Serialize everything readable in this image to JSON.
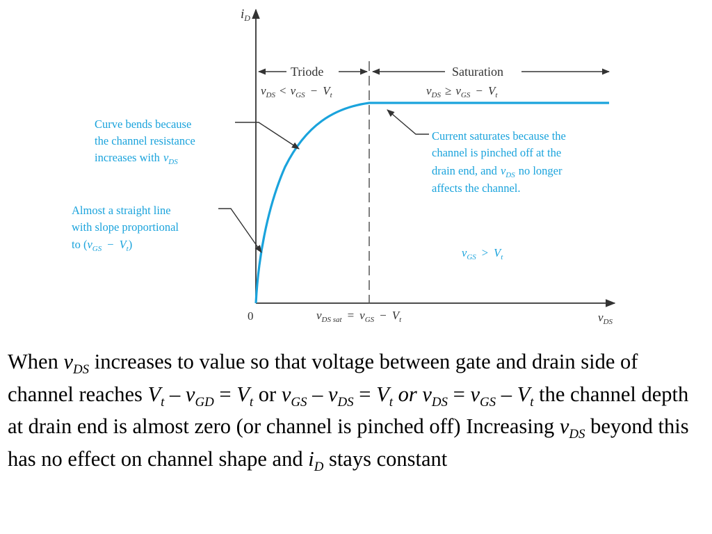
{
  "colors": {
    "curve": "#1AA3DC",
    "annotation": "#1AA3DC",
    "axis": "#333333"
  },
  "diagram": {
    "y_axis_var": "i",
    "y_axis_sub": "D",
    "x_axis_var": "v",
    "x_axis_sub": "DS",
    "origin": "0",
    "triode_label": "Triode",
    "saturation_label": "Saturation",
    "triode_condition": {
      "v1": "v",
      "s1": "DS",
      "op": "<",
      "v2": "v",
      "s2": "GS",
      "minus": "−",
      "v3": "V",
      "s3": "t"
    },
    "saturation_condition": {
      "v1": "v",
      "s1": "DS",
      "op": "≥",
      "v2": "v",
      "s2": "GS",
      "minus": "−",
      "v3": "V",
      "s3": "t"
    },
    "vds_sat": {
      "v1": "v",
      "s1": "DS sat",
      "eq": "=",
      "v2": "v",
      "s2": "GS",
      "minus": "−",
      "v3": "V",
      "s3": "t"
    },
    "condition_region": {
      "v1": "v",
      "s1": "GS",
      "op": ">",
      "v2": "V",
      "s2": "t"
    },
    "note_curve_bends": {
      "line1": "Curve bends because",
      "line2": "the channel resistance",
      "line3": "increases with",
      "var": "v",
      "sub": "DS"
    },
    "note_straight": {
      "line1": "Almost a straight line",
      "line2": "with slope proportional",
      "line3_pre": "to (",
      "v1": "v",
      "s1": "GS",
      "minus": "−",
      "v2": "V",
      "s2": "t",
      "close": ")"
    },
    "note_saturates": {
      "line1": "Current saturates because the",
      "line2": "channel is pinched off at the",
      "line3_pre": "drain end, and",
      "var": "v",
      "sub": "DS",
      "line3_post": "no longer",
      "line4": "affects the channel."
    }
  },
  "caption": {
    "t01": "When ",
    "t02": "v",
    "t03": "DS",
    "t04": " increases to value so that voltage between gate and drain side of channel reaches ",
    "t05": "V",
    "t06": "t",
    "t07": " – ",
    "t08": "v",
    "t09": "GD",
    "t10": " = ",
    "t11": "V",
    "t12": "t",
    "t13": "  or ",
    "t14": "v",
    "t15": "GS",
    "t16": " – ",
    "t17": "v",
    "t18": "DS",
    "t19": " = ",
    "t20": "V",
    "t21": "t",
    "t22": " or ",
    "t23": "v",
    "t24": "DS",
    "t25": " = ",
    "t26": "v",
    "t27": "GS",
    "t28": " – ",
    "t29": "V",
    "t30": "t",
    "t31": " the channel depth at drain end is almost zero (or channel is pinched off) Increasing ",
    "t32": "v",
    "t33": "DS",
    "t34": " beyond this has no effect on channel shape and ",
    "t35": "i",
    "t36": "D",
    "t37": " stays constant"
  }
}
